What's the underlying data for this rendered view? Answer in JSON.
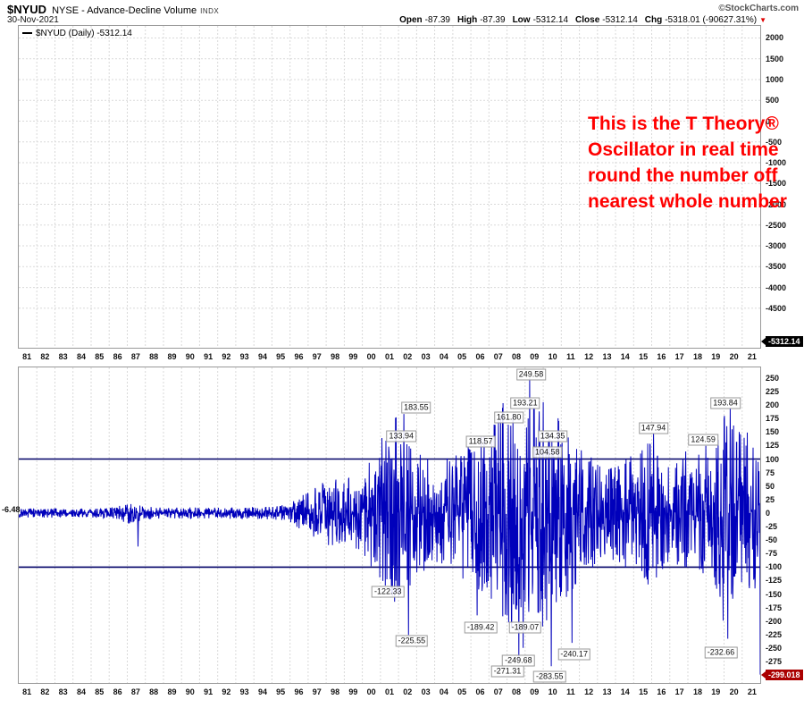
{
  "header": {
    "symbol": "$NYUD",
    "description": "NYSE - Advance-Decline Volume",
    "type_tag": "INDX",
    "copyright": "©StockCharts.com",
    "date": "30-Nov-2021",
    "quote_fields": [
      {
        "label": "Open",
        "value": "-87.39"
      },
      {
        "label": "High",
        "value": "-87.39"
      },
      {
        "label": "Low",
        "value": "-5312.14"
      },
      {
        "label": "Close",
        "value": "-5312.14"
      },
      {
        "label": "Chg",
        "value": "-5318.01 (-90627.31%)"
      }
    ],
    "change_direction_icon": "▼"
  },
  "colors": {
    "oscillator_line": "#0000bb",
    "threshold_line": "#000066",
    "grid": "#d9d9d9",
    "panel_border": "#999999",
    "annotation_red": "#ff0000",
    "price_last_box_bg": "#000000",
    "oscillator_last_box_bg": "#aa0000"
  },
  "top_panel": {
    "legend_text": "$NYUD (Daily) -5312.14",
    "last_value_label": "-5312.14",
    "note_lines": [
      "This is the T Theory®",
      "Oscillator in real time",
      "round the number off",
      "nearest whole number"
    ]
  },
  "bottom_panel": {
    "first_value_label": "-6.48",
    "last_value_label": "-299.018"
  },
  "chart_data": {
    "type": "line",
    "title": "$NYUD NYSE - Advance-Decline Volume INDX",
    "x_years": [
      "81",
      "82",
      "83",
      "84",
      "85",
      "86",
      "87",
      "88",
      "89",
      "90",
      "91",
      "92",
      "93",
      "94",
      "95",
      "96",
      "97",
      "98",
      "99",
      "00",
      "01",
      "02",
      "03",
      "04",
      "05",
      "06",
      "07",
      "08",
      "09",
      "10",
      "11",
      "12",
      "13",
      "14",
      "15",
      "16",
      "17",
      "18",
      "19",
      "20",
      "21"
    ],
    "panels": [
      {
        "name": "price",
        "ylim": [
          -5450,
          2290
        ],
        "yticks": [
          2000,
          1500,
          1000,
          500,
          0,
          -500,
          -1000,
          -1500,
          -2000,
          -2500,
          -3000,
          -3500,
          -4000,
          -4500
        ],
        "last_value": -5312.14,
        "note": "daily line is off-scale / not visible in panel"
      },
      {
        "name": "t-theory-oscillator",
        "ylim": [
          -314.5,
          269.7
        ],
        "yticks": [
          250,
          225,
          200,
          175,
          150,
          125,
          100,
          75,
          50,
          25,
          0,
          -25,
          -50,
          -75,
          -100,
          -125,
          -150,
          -175,
          -200,
          -225,
          -250,
          -275
        ],
        "hlines": [
          100,
          -100
        ],
        "first_value": -6.48,
        "last_value": -299.018,
        "envelope_by_year": [
          8,
          8,
          9,
          8,
          8,
          10,
          20,
          12,
          10,
          12,
          10,
          10,
          11,
          12,
          12,
          18,
          40,
          60,
          65,
          75,
          135,
          185,
          120,
          90,
          110,
          140,
          150,
          225,
          195,
          215,
          175,
          130,
          90,
          90,
          110,
          140,
          85,
          120,
          110,
          205,
          150
        ],
        "annotated_extremes": [
          {
            "t": 6.6,
            "value": -62
          },
          {
            "t": 20.3,
            "value": 133.94
          },
          {
            "t": 20.55,
            "value": -122.33
          },
          {
            "t": 21.3,
            "value": 183.55
          },
          {
            "t": 21.55,
            "value": -225.55
          },
          {
            "t": 24.9,
            "value": 118.57
          },
          {
            "t": 25.35,
            "value": -189.42
          },
          {
            "t": 27.0,
            "value": -189.07
          },
          {
            "t": 27.2,
            "value": 161.8
          },
          {
            "t": 27.65,
            "value": -271.31
          },
          {
            "t": 27.9,
            "value": -249.68
          },
          {
            "t": 28.25,
            "value": 249.58
          },
          {
            "t": 28.5,
            "value": 193.21
          },
          {
            "t": 29.3,
            "value": 134.35
          },
          {
            "t": 29.45,
            "value": -283.55
          },
          {
            "t": 29.6,
            "value": 104.58
          },
          {
            "t": 30.6,
            "value": -240.17
          },
          {
            "t": 35.1,
            "value": 147.94
          },
          {
            "t": 38.0,
            "value": 124.59
          },
          {
            "t": 39.2,
            "value": -232.66
          },
          {
            "t": 39.35,
            "value": 193.84
          }
        ],
        "peak_labels": [
          {
            "text": "249.58",
            "x": 0.691,
            "y": 0.023
          },
          {
            "text": "193.21",
            "x": 0.683,
            "y": 0.113
          },
          {
            "text": "183.55",
            "x": 0.536,
            "y": 0.127
          },
          {
            "text": "161.80",
            "x": 0.661,
            "y": 0.158
          },
          {
            "text": "133.94",
            "x": 0.516,
            "y": 0.217
          },
          {
            "text": "118.57",
            "x": 0.623,
            "y": 0.234
          },
          {
            "text": "134.35",
            "x": 0.72,
            "y": 0.217
          },
          {
            "text": "104.58",
            "x": 0.713,
            "y": 0.268
          },
          {
            "text": "147.94",
            "x": 0.856,
            "y": 0.192
          },
          {
            "text": "124.59",
            "x": 0.923,
            "y": 0.228
          },
          {
            "text": "193.84",
            "x": 0.953,
            "y": 0.113
          },
          {
            "text": "-122.33",
            "x": 0.498,
            "y": 0.71
          },
          {
            "text": "-225.55",
            "x": 0.53,
            "y": 0.868
          },
          {
            "text": "-189.42",
            "x": 0.623,
            "y": 0.825
          },
          {
            "text": "-189.07",
            "x": 0.683,
            "y": 0.825
          },
          {
            "text": "-249.68",
            "x": 0.674,
            "y": 0.93
          },
          {
            "text": "-271.31",
            "x": 0.659,
            "y": 0.963
          },
          {
            "text": "-283.55",
            "x": 0.716,
            "y": 0.98
          },
          {
            "text": "-240.17",
            "x": 0.749,
            "y": 0.91
          },
          {
            "text": "-232.66",
            "x": 0.947,
            "y": 0.904
          }
        ]
      }
    ]
  }
}
